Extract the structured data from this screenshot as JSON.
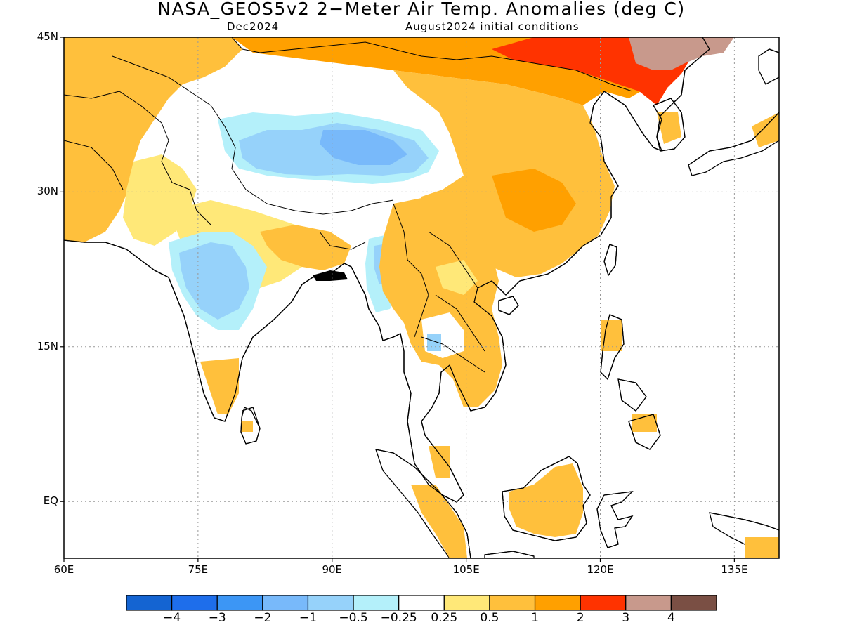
{
  "title": "NASA_GEOS5v2 2−Meter Air Temp. Anomalies (deg C)",
  "subtitle_left": "Dec2024",
  "subtitle_right": "August2024 initial conditions",
  "map": {
    "projection": "equirectangular",
    "lon_range": [
      60,
      140
    ],
    "lat_range": [
      -5.5,
      45
    ],
    "lat_ticks": [
      {
        "label": "45N",
        "value": 45
      },
      {
        "label": "30N",
        "value": 30
      },
      {
        "label": "15N",
        "value": 15
      },
      {
        "label": "EQ",
        "value": 0
      }
    ],
    "lon_ticks": [
      {
        "label": "60E",
        "value": 60
      },
      {
        "label": "75E",
        "value": 75
      },
      {
        "label": "90E",
        "value": 90
      },
      {
        "label": "105E",
        "value": 105
      },
      {
        "label": "120E",
        "value": 120
      },
      {
        "label": "135E",
        "value": 135
      }
    ],
    "grid": true,
    "ocean_masked": true
  },
  "colorbar": {
    "colors": [
      "#1464d2",
      "#1e6eeb",
      "#3c96f5",
      "#78b9fa",
      "#96d2fa",
      "#b4f0fa",
      "#ffffff",
      "#ffe878",
      "#ffc03c",
      "#ffa000",
      "#ff3300",
      "#c8998c",
      "#7a4f44"
    ],
    "labels": [
      "−4",
      "−3",
      "−2",
      "−1",
      "−0.5",
      "−0.25",
      "0.25",
      "0.5",
      "1",
      "2",
      "3",
      "4"
    ]
  },
  "anomaly_regions": [
    {
      "category": "0.5 to 1",
      "area": "Central Asia / Afghanistan / Pakistan",
      "lon": [
        60,
        72
      ],
      "lat": [
        27,
        45
      ]
    },
    {
      "category": "1 to 2",
      "area": "Mongolia / Northern China",
      "lon": [
        90,
        122
      ],
      "lat": [
        37,
        45
      ]
    },
    {
      "category": "2 to 3",
      "area": "Northeast China / Inner Mongolia",
      "lon": [
        112,
        127
      ],
      "lat": [
        40,
        45
      ]
    },
    {
      "category": "3 to 4",
      "area": "Northeast China border",
      "lon": [
        122,
        131
      ],
      "lat": [
        42,
        45
      ]
    },
    {
      "category": "0.5 to 1",
      "area": "Eastern China",
      "lon": [
        100,
        121
      ],
      "lat": [
        24,
        37
      ]
    },
    {
      "category": "-1 to -0.5",
      "area": "Tibetan Plateau",
      "lon": [
        84,
        101
      ],
      "lat": [
        31,
        38
      ]
    },
    {
      "category": "-1 to -0.5",
      "area": "Central India",
      "lon": [
        74,
        84
      ],
      "lat": [
        19,
        27
      ]
    },
    {
      "category": "-1 to -0.5",
      "area": "Northeast India / Myanmar",
      "lon": [
        93,
        97
      ],
      "lat": [
        20,
        25
      ]
    },
    {
      "category": "0.5 to 1",
      "area": "Indochina",
      "lon": [
        96,
        109
      ],
      "lat": [
        10,
        25
      ]
    },
    {
      "category": "0.5 to 1",
      "area": "Borneo",
      "lon": [
        109,
        119
      ],
      "lat": [
        -3,
        4
      ]
    },
    {
      "category": "0.5 to 1",
      "area": "Sumatra",
      "lon": [
        99,
        106
      ],
      "lat": [
        -5,
        3
      ]
    },
    {
      "category": "0.5 to 1",
      "area": "South India",
      "lon": [
        75,
        80
      ],
      "lat": [
        9,
        15
      ]
    }
  ]
}
